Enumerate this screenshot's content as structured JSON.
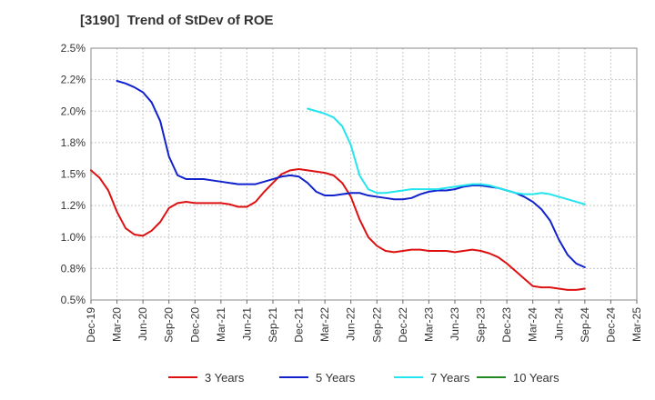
{
  "chart_data": {
    "type": "line",
    "title": "[3190]  Trend of StDev of ROE",
    "xlabel": "",
    "ylabel": "",
    "x_ticks": [
      "Dec-19",
      "Mar-20",
      "Jun-20",
      "Sep-20",
      "Dec-20",
      "Mar-21",
      "Jun-21",
      "Sep-21",
      "Dec-21",
      "Mar-22",
      "Jun-22",
      "Sep-22",
      "Dec-22",
      "Mar-23",
      "Jun-23",
      "Sep-23",
      "Dec-23",
      "Mar-24",
      "Jun-24",
      "Sep-24",
      "Dec-24",
      "Mar-25"
    ],
    "y_ticks": [
      "0.5%",
      "0.8%",
      "1.0%",
      "1.2%",
      "1.5%",
      "1.8%",
      "2.0%",
      "2.2%",
      "2.5%"
    ],
    "y_tick_values": [
      0.5,
      0.75,
      1.0,
      1.25,
      1.5,
      1.75,
      2.0,
      2.25,
      2.5
    ],
    "ylim": [
      0.5,
      2.5
    ],
    "grid": true,
    "legend_position": "bottom",
    "series": [
      {
        "name": "3 Years",
        "color": "#dd1111",
        "values": [
          [
            0,
            1.53
          ],
          [
            1,
            1.47
          ],
          [
            2,
            1.37
          ],
          [
            3,
            1.2
          ],
          [
            4,
            1.07
          ],
          [
            5,
            1.02
          ],
          [
            6,
            1.01
          ],
          [
            7,
            1.05
          ],
          [
            8,
            1.12
          ],
          [
            9,
            1.23
          ],
          [
            10,
            1.27
          ],
          [
            11,
            1.28
          ],
          [
            12,
            1.27
          ],
          [
            13,
            1.27
          ],
          [
            14,
            1.27
          ],
          [
            15,
            1.27
          ],
          [
            16,
            1.26
          ],
          [
            17,
            1.24
          ],
          [
            18,
            1.24
          ],
          [
            19,
            1.28
          ],
          [
            20,
            1.36
          ],
          [
            21,
            1.43
          ],
          [
            22,
            1.5
          ],
          [
            23,
            1.53
          ],
          [
            24,
            1.54
          ],
          [
            25,
            1.53
          ],
          [
            26,
            1.52
          ],
          [
            27,
            1.51
          ],
          [
            28,
            1.49
          ],
          [
            29,
            1.43
          ],
          [
            30,
            1.32
          ],
          [
            31,
            1.14
          ],
          [
            32,
            1.0
          ],
          [
            33,
            0.93
          ],
          [
            34,
            0.89
          ],
          [
            35,
            0.88
          ],
          [
            36,
            0.89
          ],
          [
            37,
            0.9
          ],
          [
            38,
            0.9
          ],
          [
            39,
            0.89
          ],
          [
            40,
            0.89
          ],
          [
            41,
            0.89
          ],
          [
            42,
            0.88
          ],
          [
            43,
            0.89
          ],
          [
            44,
            0.9
          ],
          [
            45,
            0.89
          ],
          [
            46,
            0.87
          ],
          [
            47,
            0.84
          ],
          [
            48,
            0.79
          ],
          [
            49,
            0.73
          ],
          [
            50,
            0.67
          ],
          [
            51,
            0.61
          ],
          [
            52,
            0.6
          ],
          [
            53,
            0.6
          ],
          [
            54,
            0.59
          ],
          [
            55,
            0.58
          ],
          [
            56,
            0.58
          ],
          [
            57,
            0.59
          ]
        ]
      },
      {
        "name": "5 Years",
        "color": "#1122cc",
        "values": [
          [
            3,
            2.24
          ],
          [
            4,
            2.22
          ],
          [
            5,
            2.19
          ],
          [
            6,
            2.15
          ],
          [
            7,
            2.07
          ],
          [
            8,
            1.92
          ],
          [
            9,
            1.64
          ],
          [
            10,
            1.49
          ],
          [
            11,
            1.46
          ],
          [
            12,
            1.46
          ],
          [
            13,
            1.46
          ],
          [
            14,
            1.45
          ],
          [
            15,
            1.44
          ],
          [
            16,
            1.43
          ],
          [
            17,
            1.42
          ],
          [
            18,
            1.42
          ],
          [
            19,
            1.42
          ],
          [
            20,
            1.44
          ],
          [
            21,
            1.46
          ],
          [
            22,
            1.48
          ],
          [
            23,
            1.49
          ],
          [
            24,
            1.48
          ],
          [
            25,
            1.43
          ],
          [
            26,
            1.36
          ],
          [
            27,
            1.33
          ],
          [
            28,
            1.33
          ],
          [
            29,
            1.34
          ],
          [
            30,
            1.35
          ],
          [
            31,
            1.35
          ],
          [
            32,
            1.33
          ],
          [
            33,
            1.32
          ],
          [
            34,
            1.31
          ],
          [
            35,
            1.3
          ],
          [
            36,
            1.3
          ],
          [
            37,
            1.31
          ],
          [
            38,
            1.34
          ],
          [
            39,
            1.36
          ],
          [
            40,
            1.37
          ],
          [
            41,
            1.37
          ],
          [
            42,
            1.38
          ],
          [
            43,
            1.4
          ],
          [
            44,
            1.41
          ],
          [
            45,
            1.41
          ],
          [
            46,
            1.4
          ],
          [
            47,
            1.39
          ],
          [
            48,
            1.37
          ],
          [
            49,
            1.35
          ],
          [
            50,
            1.32
          ],
          [
            51,
            1.28
          ],
          [
            52,
            1.22
          ],
          [
            53,
            1.13
          ],
          [
            54,
            0.98
          ],
          [
            55,
            0.86
          ],
          [
            56,
            0.79
          ],
          [
            57,
            0.76
          ]
        ]
      },
      {
        "name": "7 Years",
        "color": "#22e5ee",
        "values": [
          [
            25,
            2.02
          ],
          [
            26,
            2.0
          ],
          [
            27,
            1.98
          ],
          [
            28,
            1.95
          ],
          [
            29,
            1.88
          ],
          [
            30,
            1.73
          ],
          [
            31,
            1.49
          ],
          [
            32,
            1.38
          ],
          [
            33,
            1.35
          ],
          [
            34,
            1.35
          ],
          [
            35,
            1.36
          ],
          [
            36,
            1.37
          ],
          [
            37,
            1.38
          ],
          [
            38,
            1.38
          ],
          [
            39,
            1.38
          ],
          [
            40,
            1.38
          ],
          [
            41,
            1.39
          ],
          [
            42,
            1.4
          ],
          [
            43,
            1.41
          ],
          [
            44,
            1.42
          ],
          [
            45,
            1.42
          ],
          [
            46,
            1.41
          ],
          [
            47,
            1.39
          ],
          [
            48,
            1.37
          ],
          [
            49,
            1.35
          ],
          [
            50,
            1.34
          ],
          [
            51,
            1.34
          ],
          [
            52,
            1.35
          ],
          [
            53,
            1.34
          ],
          [
            54,
            1.32
          ],
          [
            55,
            1.3
          ],
          [
            56,
            1.28
          ],
          [
            57,
            1.26
          ]
        ]
      },
      {
        "name": "10 Years",
        "color": "#228822",
        "values": []
      }
    ]
  }
}
